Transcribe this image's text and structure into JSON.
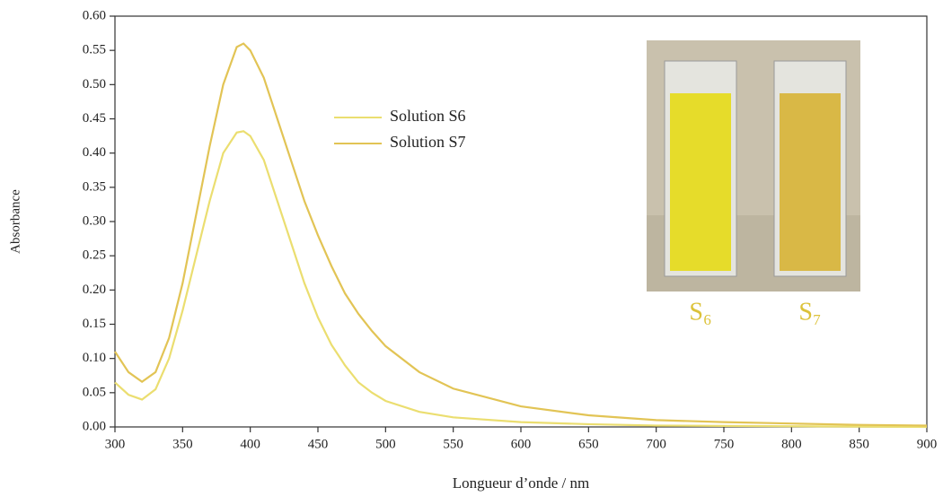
{
  "chart_data": {
    "type": "line",
    "x_label": "Longueur d’onde / nm",
    "y_label": "Absorbance",
    "x": [
      300,
      310,
      320,
      330,
      340,
      350,
      360,
      370,
      380,
      390,
      395,
      400,
      410,
      420,
      430,
      440,
      450,
      460,
      470,
      480,
      490,
      500,
      525,
      550,
      600,
      650,
      700,
      750,
      800,
      850,
      900
    ],
    "series": [
      {
        "name": "Solution S6",
        "color": "#ebde70",
        "values": [
          0.065,
          0.047,
          0.04,
          0.055,
          0.1,
          0.17,
          0.25,
          0.33,
          0.4,
          0.43,
          0.432,
          0.425,
          0.39,
          0.33,
          0.27,
          0.21,
          0.16,
          0.12,
          0.09,
          0.065,
          0.05,
          0.038,
          0.022,
          0.014,
          0.007,
          0.004,
          0.002,
          0.0015,
          0.001,
          0.0005,
          0
        ]
      },
      {
        "name": "Solution S7",
        "color": "#e2c455",
        "values": [
          0.11,
          0.08,
          0.066,
          0.08,
          0.13,
          0.21,
          0.31,
          0.41,
          0.5,
          0.555,
          0.56,
          0.55,
          0.51,
          0.45,
          0.39,
          0.33,
          0.28,
          0.235,
          0.195,
          0.165,
          0.14,
          0.118,
          0.08,
          0.056,
          0.03,
          0.017,
          0.01,
          0.007,
          0.005,
          0.003,
          0.002
        ]
      }
    ],
    "xlim": [
      300,
      900
    ],
    "ylim": [
      0,
      0.6
    ],
    "xticks": [
      300,
      350,
      400,
      450,
      500,
      550,
      600,
      650,
      700,
      750,
      800,
      850,
      900
    ],
    "yticks": [
      {
        "value": 0,
        "label": "0.00"
      },
      {
        "value": 0.05,
        "label": "0.05"
      },
      {
        "value": 0.1,
        "label": "0.10"
      },
      {
        "value": 0.15,
        "label": "0.15"
      },
      {
        "value": 0.2,
        "label": "0.20"
      },
      {
        "value": 0.25,
        "label": "0.25"
      },
      {
        "value": 0.3,
        "label": "0.30"
      },
      {
        "value": 0.35,
        "label": "0.35"
      },
      {
        "value": 0.4,
        "label": "0.40"
      },
      {
        "value": 0.45,
        "label": "0.45"
      },
      {
        "value": 0.5,
        "label": "0.50"
      },
      {
        "value": 0.55,
        "label": "0.55"
      },
      {
        "value": 0.6,
        "label": "0.60"
      }
    ],
    "inset_labels": [
      "S₆",
      "S₇"
    ],
    "inset_label_color": "#dcc23a"
  }
}
